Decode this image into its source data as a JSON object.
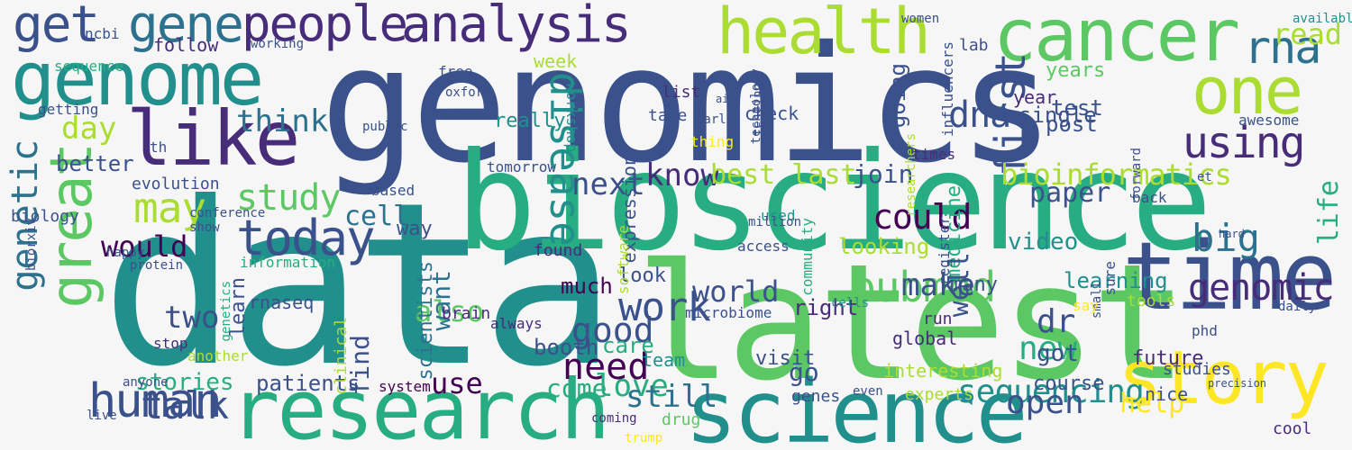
{
  "background": "#f6f6f6",
  "palette": [
    "#440154",
    "#472c7a",
    "#3b518b",
    "#2c718e",
    "#21908d",
    "#27ad81",
    "#5cc863",
    "#aadc32",
    "#fde725"
  ],
  "words": [
    {
      "text": "genomics",
      "color": "#3b518b"
    },
    {
      "text": "data",
      "color": "#21908d"
    },
    {
      "text": "latest",
      "color": "#5cc863"
    },
    {
      "text": "bioscience",
      "color": "#27ad81"
    },
    {
      "text": "science",
      "color": "#21908d"
    },
    {
      "text": "research",
      "color": "#27ad81"
    },
    {
      "text": "genome",
      "color": "#21908d"
    },
    {
      "text": "cancer",
      "color": "#5cc863"
    },
    {
      "text": "story",
      "color": "#fde725"
    },
    {
      "text": "time",
      "color": "#3b518b"
    },
    {
      "text": "like",
      "color": "#472c7a"
    },
    {
      "text": "people",
      "color": "#472c7a"
    },
    {
      "text": "analysis",
      "color": "#472c7a"
    },
    {
      "text": "health",
      "color": "#aadc32"
    },
    {
      "text": "one",
      "color": "#aadc32"
    },
    {
      "text": "great",
      "color": "#5cc863"
    },
    {
      "text": "human",
      "color": "#3b518b"
    },
    {
      "text": "gene",
      "color": "#2c718e"
    },
    {
      "text": "get",
      "color": "#3b518b"
    },
    {
      "text": "disease",
      "color": "#21908d"
    },
    {
      "text": "today",
      "color": "#3b518b"
    },
    {
      "text": "pubmed",
      "color": "#5cc863"
    },
    {
      "text": "using",
      "color": "#472c7a"
    },
    {
      "text": "rna",
      "color": "#2c718e"
    },
    {
      "text": "genetic",
      "color": "#2c718e"
    },
    {
      "text": "may",
      "color": "#aadc32"
    },
    {
      "text": "first",
      "color": "#3b518b"
    },
    {
      "text": "world",
      "color": "#3b518b"
    },
    {
      "text": "sequencing",
      "color": "#21908d"
    },
    {
      "text": "bioinformatics",
      "color": "#aadc32"
    },
    {
      "text": "genomic",
      "color": "#472c7a"
    },
    {
      "text": "could",
      "color": "#440154"
    },
    {
      "text": "study",
      "color": "#5cc863"
    },
    {
      "text": "talk",
      "color": "#3b518b"
    },
    {
      "text": "work",
      "color": "#3b518b"
    },
    {
      "text": "new",
      "color": "#27ad81"
    },
    {
      "text": "good",
      "color": "#3b518b"
    },
    {
      "text": "need",
      "color": "#440154"
    },
    {
      "text": "open",
      "color": "#3b518b"
    },
    {
      "text": "big",
      "color": "#2c718e"
    },
    {
      "text": "read",
      "color": "#aadc32"
    },
    {
      "text": "dna",
      "color": "#3b518b"
    },
    {
      "text": "think",
      "color": "#2c718e"
    },
    {
      "text": "would",
      "color": "#440154"
    },
    {
      "text": "know",
      "color": "#472c7a"
    },
    {
      "text": "next",
      "color": "#3b518b"
    },
    {
      "text": "paper",
      "color": "#3b518b"
    },
    {
      "text": "cell",
      "color": "#2c718e"
    },
    {
      "text": "also",
      "color": "#5cc863"
    },
    {
      "text": "best last",
      "color": "#aadc32"
    },
    {
      "text": "join",
      "color": "#3b518b"
    },
    {
      "text": "day",
      "color": "#aadc32"
    },
    {
      "text": "make",
      "color": "#3b518b"
    },
    {
      "text": "use",
      "color": "#440154"
    },
    {
      "text": "come",
      "color": "#27ad81"
    },
    {
      "text": "love",
      "color": "#27ad81"
    },
    {
      "text": "still",
      "color": "#2c718e"
    },
    {
      "text": "help",
      "color": "#fde725"
    },
    {
      "text": "life",
      "color": "#27ad81"
    },
    {
      "text": "video",
      "color": "#21908d"
    },
    {
      "text": "stories",
      "color": "#27ad81"
    },
    {
      "text": "patients",
      "color": "#3b518b"
    },
    {
      "text": "right",
      "color": "#472c7a"
    },
    {
      "text": "looking",
      "color": "#aadc32"
    },
    {
      "text": "dr",
      "color": "#3b518b"
    },
    {
      "text": "got",
      "color": "#3b518b"
    },
    {
      "text": "two",
      "color": "#3b518b"
    },
    {
      "text": "find",
      "color": "#3b518b"
    },
    {
      "text": "much",
      "color": "#440154"
    },
    {
      "text": "booth",
      "color": "#3b518b"
    },
    {
      "text": "care",
      "color": "#27ad81"
    },
    {
      "text": "learning",
      "color": "#21908d"
    },
    {
      "text": "future",
      "color": "#472c7a"
    },
    {
      "text": "interesting",
      "color": "#aadc32"
    },
    {
      "text": "check",
      "color": "#3b518b"
    },
    {
      "text": "test",
      "color": "#3b518b"
    },
    {
      "text": "post",
      "color": "#3b518b"
    },
    {
      "text": "single",
      "color": "#3b518b"
    },
    {
      "text": "medicine",
      "color": "#27ad81"
    },
    {
      "text": "year",
      "color": "#472c7a"
    },
    {
      "text": "scientists",
      "color": "#2c718e"
    },
    {
      "text": "want",
      "color": "#2c718e"
    },
    {
      "text": "well",
      "color": "#3b518b"
    },
    {
      "text": "clinical",
      "color": "#aadc32"
    },
    {
      "text": "week",
      "color": "#aadc32"
    },
    {
      "text": "lab",
      "color": "#3b518b"
    },
    {
      "text": "better",
      "color": "#3b518b"
    },
    {
      "text": "expression",
      "color": "#3b518b"
    },
    {
      "text": "really",
      "color": "#21908d"
    },
    {
      "text": "follow",
      "color": "#472c7a"
    },
    {
      "text": "working",
      "color": "#3b518b"
    },
    {
      "text": "biology",
      "color": "#3b518b"
    },
    {
      "text": "going",
      "color": "#3b518b"
    },
    {
      "text": "evolution",
      "color": "#3b518b"
    },
    {
      "text": "conference",
      "color": "#3b518b"
    },
    {
      "text": "happy",
      "color": "#3b518b"
    },
    {
      "text": "protein",
      "color": "#3b518b"
    },
    {
      "text": "information",
      "color": "#27ad81"
    },
    {
      "text": "learn",
      "color": "#3b518b"
    },
    {
      "text": "list",
      "color": "#472c7a"
    },
    {
      "text": "take",
      "color": "#3b518b"
    },
    {
      "text": "thing",
      "color": "#fde725"
    },
    {
      "text": "years",
      "color": "#5cc863"
    },
    {
      "text": "awesome",
      "color": "#3b518b"
    },
    {
      "text": "available",
      "color": "#21908d"
    },
    {
      "text": "way",
      "color": "#3b518b"
    },
    {
      "text": "found",
      "color": "#472c7a"
    },
    {
      "text": "many",
      "color": "#3b518b"
    },
    {
      "text": "look",
      "color": "#3b518b"
    },
    {
      "text": "anyone",
      "color": "#3b518b"
    },
    {
      "text": "stop",
      "color": "#472c7a"
    },
    {
      "text": "team",
      "color": "#21908d"
    },
    {
      "text": "visit",
      "color": "#3b518b"
    },
    {
      "text": "global",
      "color": "#472c7a"
    },
    {
      "text": "course",
      "color": "#3b518b"
    },
    {
      "text": "studies",
      "color": "#3b518b"
    },
    {
      "text": "nice",
      "color": "#3b518b"
    },
    {
      "text": "cool",
      "color": "#472c7a"
    },
    {
      "text": "system",
      "color": "#440154"
    },
    {
      "text": "live",
      "color": "#3b518b"
    },
    {
      "text": "go",
      "color": "#3b518b"
    },
    {
      "text": "genes",
      "color": "#3b518b"
    },
    {
      "text": "even",
      "color": "#3b518b"
    },
    {
      "text": "drug",
      "color": "#5cc863"
    },
    {
      "text": "run",
      "color": "#472c7a"
    },
    {
      "text": "used",
      "color": "#21908d"
    },
    {
      "text": "access",
      "color": "#3b518b"
    },
    {
      "text": "microbiome",
      "color": "#3b518b"
    },
    {
      "text": "tools",
      "color": "#aadc32"
    },
    {
      "text": "daily",
      "color": "#3b518b"
    },
    {
      "text": "tomorrow",
      "color": "#3b518b"
    },
    {
      "text": "free",
      "color": "#3b518b"
    },
    {
      "text": "ncbi",
      "color": "#3b518b"
    },
    {
      "text": "sequence",
      "color": "#27ad81"
    },
    {
      "text": "th",
      "color": "#3b518b"
    },
    {
      "text": "getting",
      "color": "#3b518b"
    },
    {
      "text": "based",
      "color": "#3b518b"
    },
    {
      "text": "show",
      "color": "#3b518b"
    },
    {
      "text": "rnaseq",
      "color": "#3b518b"
    },
    {
      "text": "brain",
      "color": "#472c7a"
    },
    {
      "text": "another",
      "color": "#aadc32"
    },
    {
      "text": "trump",
      "color": "#fde725"
    },
    {
      "text": "coming",
      "color": "#472c7a"
    },
    {
      "text": "genetics",
      "color": "#27ad81"
    },
    {
      "text": "always",
      "color": "#472c7a"
    },
    {
      "text": "technology",
      "color": "#3b518b"
    },
    {
      "text": "early",
      "color": "#3b518b"
    },
    {
      "text": "community",
      "color": "#27ad81"
    },
    {
      "text": "influencers",
      "color": "#3b518b"
    },
    {
      "text": "researchers",
      "color": "#aadc32"
    },
    {
      "text": "women",
      "color": "#3b518b"
    },
    {
      "text": "public",
      "color": "#3b518b"
    },
    {
      "text": "oxford",
      "color": "#3b518b"
    },
    {
      "text": "software",
      "color": "#aadc32"
    },
    {
      "text": "register",
      "color": "#3b518b"
    },
    {
      "text": "times",
      "color": "#472c7a"
    },
    {
      "text": "small",
      "color": "#3b518b"
    },
    {
      "text": "sure",
      "color": "#3b518b"
    },
    {
      "text": "forward",
      "color": "#3b518b"
    },
    {
      "text": "phd",
      "color": "#3b518b"
    },
    {
      "text": "et",
      "color": "#3b518b"
    },
    {
      "text": "back",
      "color": "#3b518b"
    },
    {
      "text": "hard",
      "color": "#3b518b"
    },
    {
      "text": "biorxiv",
      "color": "#3b518b"
    },
    {
      "text": "workshop",
      "color": "#21908d"
    },
    {
      "text": "experts",
      "color": "#aadc32"
    },
    {
      "text": "million",
      "color": "#3b518b"
    },
    {
      "text": "say",
      "color": "#fde725"
    },
    {
      "text": "cells",
      "color": "#21908d"
    },
    {
      "text": "ai",
      "color": "#3b518b"
    },
    {
      "text": "precision",
      "color": "#3b518b"
    },
    {
      "text": "testing",
      "color": "#3b518b"
    }
  ]
}
